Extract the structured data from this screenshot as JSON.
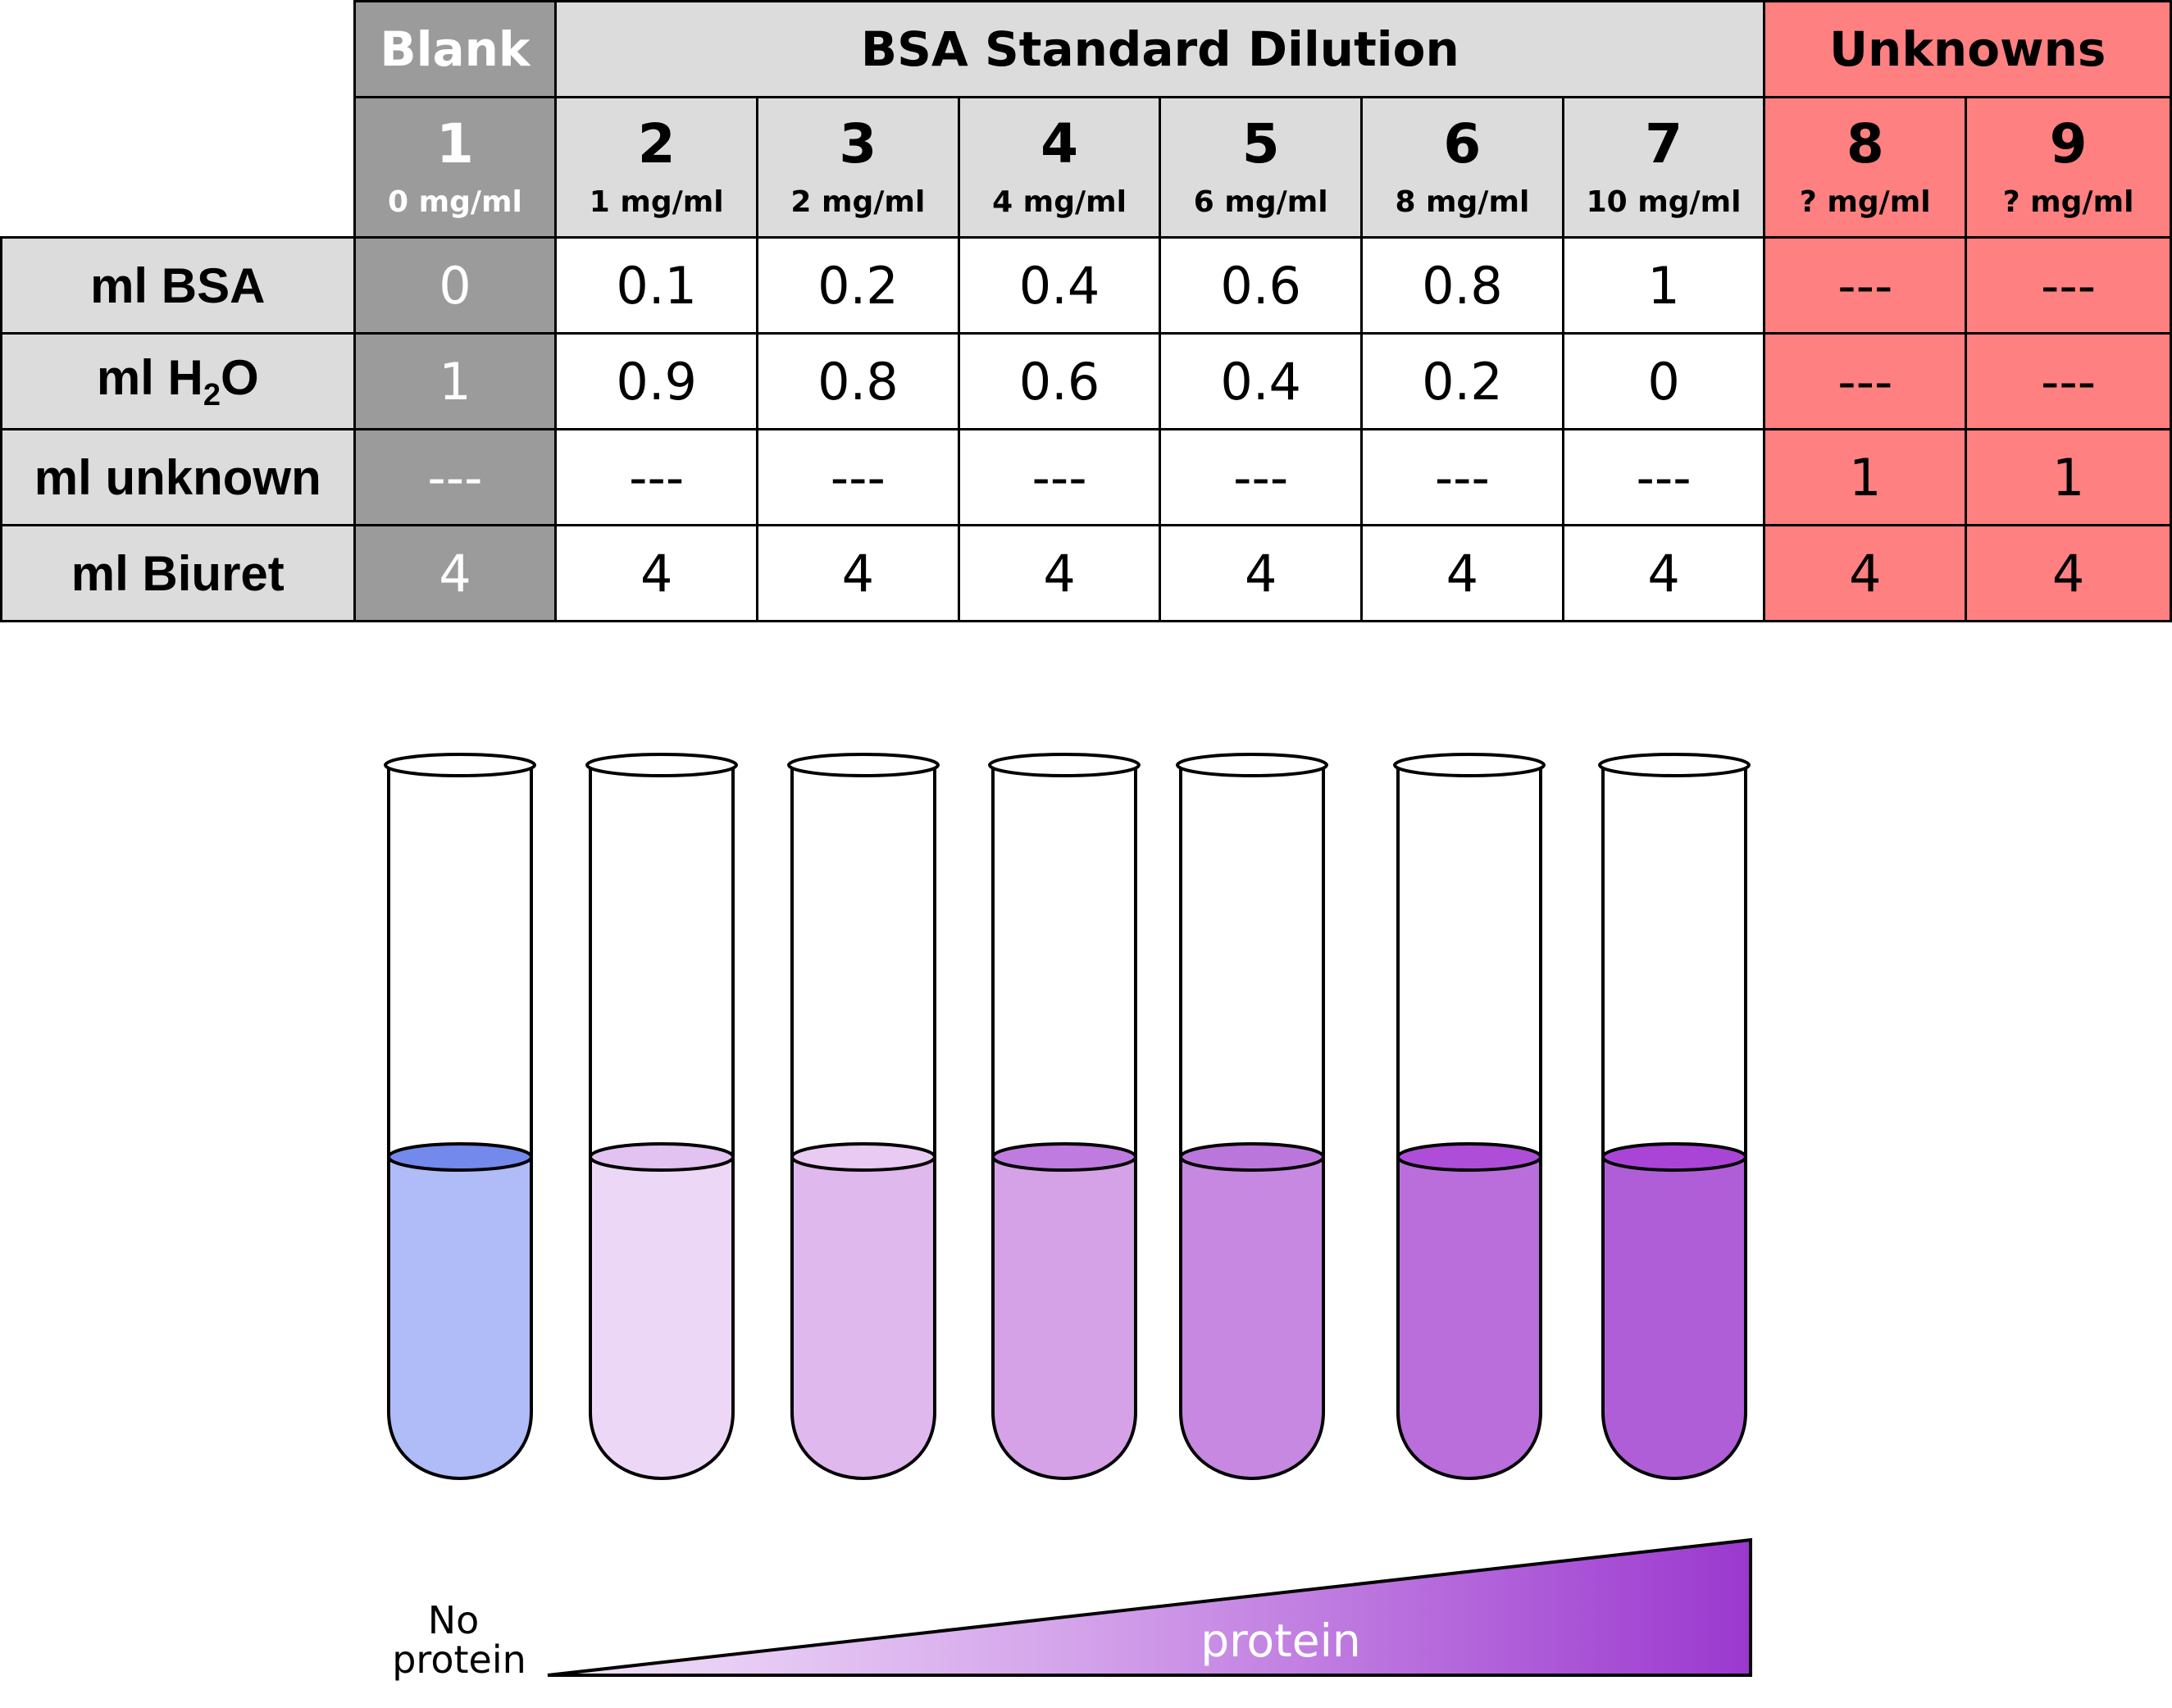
{
  "groups": {
    "blank": "Blank",
    "standard": "BSA Standard Dilution",
    "unknowns": "Unknowns"
  },
  "columns": [
    {
      "num": "1",
      "conc": "0 mg/ml"
    },
    {
      "num": "2",
      "conc": "1 mg/ml"
    },
    {
      "num": "3",
      "conc": "2 mg/ml"
    },
    {
      "num": "4",
      "conc": "4 mg/ml"
    },
    {
      "num": "5",
      "conc": "6 mg/ml"
    },
    {
      "num": "6",
      "conc": "8 mg/ml"
    },
    {
      "num": "7",
      "conc": "10 mg/ml"
    },
    {
      "num": "8",
      "conc": "? mg/ml"
    },
    {
      "num": "9",
      "conc": "? mg/ml"
    }
  ],
  "rows": [
    {
      "label_pre": "ml BSA",
      "label_sub": "",
      "label_post": "",
      "values": [
        "0",
        "0.1",
        "0.2",
        "0.4",
        "0.6",
        "0.8",
        "1",
        "---",
        "---"
      ]
    },
    {
      "label_pre": "ml H",
      "label_sub": "2",
      "label_post": "O",
      "values": [
        "1",
        "0.9",
        "0.8",
        "0.6",
        "0.4",
        "0.2",
        "0",
        "---",
        "---"
      ]
    },
    {
      "label_pre": "ml unknown",
      "label_sub": "",
      "label_post": "",
      "values": [
        "---",
        "---",
        "---",
        "---",
        "---",
        "---",
        "---",
        "1",
        "1"
      ]
    },
    {
      "label_pre": "ml Biuret",
      "label_sub": "",
      "label_post": "",
      "values": [
        "4",
        "4",
        "4",
        "4",
        "4",
        "4",
        "4",
        "4",
        "4"
      ]
    }
  ],
  "colors": {
    "blank": "#9b9b9b",
    "standard": "#dcdcdc",
    "unknown": "#ff8080"
  },
  "tubes": [
    {
      "fill": "#b0bcf8",
      "top": "#7489ec"
    },
    {
      "fill": "#ecd8f6",
      "top": "#e2c2f0"
    },
    {
      "fill": "#dfb8ee",
      "top": "#e8caf2"
    },
    {
      "fill": "#d5a2e8",
      "top": "#c07be0"
    },
    {
      "fill": "#c788e2",
      "top": "#bb76dc"
    },
    {
      "fill": "#b96edc",
      "top": "#ae4ed8"
    },
    {
      "fill": "#b05ed8",
      "top": "#aa44d6"
    }
  ],
  "gradient": {
    "left_label_line1": "No",
    "left_label_line2": "protein",
    "bar_label": "protein",
    "color_start": "#f2e4fa",
    "color_end": "#9b38cf"
  }
}
